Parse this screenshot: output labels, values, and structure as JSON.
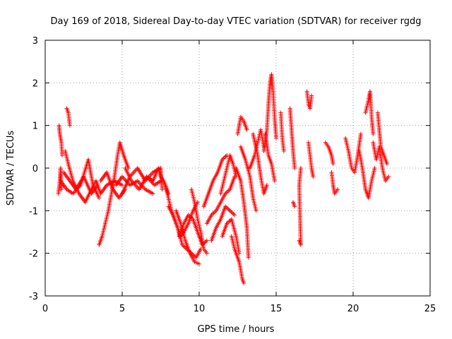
{
  "chart_data": {
    "type": "scatter",
    "title": "Day 169 of 2018, Sidereal Day-to-day VTEC variation (SDTVAR) for receiver rgdg",
    "xlabel": "GPS time / hours",
    "ylabel": "SDTVAR / TECUs",
    "xlim": [
      0,
      25
    ],
    "ylim": [
      -3,
      3
    ],
    "xticks": [
      0,
      5,
      10,
      15,
      20,
      25
    ],
    "yticks": [
      -3,
      -2,
      -1,
      0,
      1,
      2,
      3
    ],
    "grid": true,
    "marker": "+",
    "color": "#ff0000",
    "series": [
      {
        "name": "SDTVAR",
        "tracks": [
          [
            [
              0.85,
              -0.6
            ],
            [
              0.95,
              -0.3
            ],
            [
              1.0,
              0.0
            ],
            [
              1.05,
              -0.5
            ]
          ],
          [
            [
              0.9,
              1.0
            ],
            [
              0.95,
              0.8
            ],
            [
              1.05,
              0.6
            ],
            [
              1.1,
              0.3
            ]
          ],
          [
            [
              1.4,
              1.4
            ],
            [
              1.5,
              1.3
            ],
            [
              1.6,
              1.0
            ]
          ],
          [
            [
              1.3,
              0.4
            ],
            [
              1.5,
              0.1
            ],
            [
              1.8,
              -0.3
            ],
            [
              2.2,
              -0.6
            ],
            [
              2.6,
              -0.8
            ],
            [
              3.0,
              -0.5
            ],
            [
              3.3,
              -0.3
            ],
            [
              3.6,
              -0.6
            ],
            [
              4.0,
              -0.4
            ],
            [
              4.5,
              -0.3
            ],
            [
              5.0,
              -0.4
            ]
          ],
          [
            [
              1.0,
              -0.3
            ],
            [
              1.4,
              -0.5
            ],
            [
              1.8,
              -0.6
            ],
            [
              2.3,
              -0.4
            ],
            [
              2.8,
              0.2
            ],
            [
              3.1,
              -0.4
            ],
            [
              3.5,
              -0.7
            ]
          ],
          [
            [
              1.2,
              -0.1
            ],
            [
              1.6,
              -0.3
            ],
            [
              2.0,
              -0.5
            ],
            [
              2.5,
              -0.2
            ],
            [
              3.0,
              -0.6
            ],
            [
              3.4,
              -0.4
            ]
          ],
          [
            [
              3.5,
              -1.8
            ],
            [
              3.7,
              -1.6
            ],
            [
              3.9,
              -1.3
            ],
            [
              4.1,
              -1.0
            ],
            [
              4.3,
              -0.6
            ],
            [
              4.5,
              -0.2
            ],
            [
              4.7,
              0.3
            ],
            [
              4.85,
              0.6
            ],
            [
              5.1,
              0.3
            ],
            [
              5.4,
              0.0
            ]
          ],
          [
            [
              3.6,
              -0.3
            ],
            [
              4.0,
              -0.1
            ],
            [
              4.4,
              -0.5
            ],
            [
              4.8,
              -0.7
            ],
            [
              5.2,
              -0.5
            ]
          ],
          [
            [
              4.6,
              -0.4
            ],
            [
              5.0,
              -0.2
            ],
            [
              5.5,
              -0.4
            ],
            [
              6.0,
              -0.3
            ],
            [
              6.5,
              -0.5
            ],
            [
              7.0,
              -0.6
            ]
          ],
          [
            [
              5.0,
              -0.6
            ],
            [
              5.5,
              -0.2
            ],
            [
              6.0,
              0.0
            ],
            [
              6.5,
              -0.3
            ],
            [
              7.0,
              -0.1
            ],
            [
              7.5,
              0.0
            ],
            [
              7.6,
              -0.5
            ]
          ],
          [
            [
              5.2,
              0.0
            ],
            [
              5.6,
              -0.3
            ],
            [
              6.1,
              -0.5
            ],
            [
              6.6,
              -0.2
            ],
            [
              7.1,
              -0.4
            ],
            [
              7.5,
              -0.3
            ]
          ],
          [
            [
              6.6,
              -0.2
            ],
            [
              7.0,
              -0.3
            ],
            [
              7.35,
              0.0
            ],
            [
              7.5,
              -0.2
            ],
            [
              7.7,
              -0.3
            ],
            [
              7.9,
              -0.5
            ],
            [
              8.0,
              -0.6
            ]
          ],
          [
            [
              7.8,
              -0.4
            ],
            [
              8.0,
              -0.7
            ],
            [
              8.2,
              -1.0
            ],
            [
              8.5,
              -1.3
            ],
            [
              8.8,
              -1.6
            ],
            [
              9.0,
              -1.5
            ],
            [
              9.3,
              -1.3
            ],
            [
              9.6,
              -1.0
            ],
            [
              9.9,
              -0.8
            ]
          ],
          [
            [
              8.0,
              -0.9
            ],
            [
              8.3,
              -1.1
            ],
            [
              8.6,
              -1.4
            ],
            [
              8.9,
              -1.8
            ],
            [
              9.2,
              -1.9
            ],
            [
              9.5,
              -2.0
            ],
            [
              9.8,
              -2.1
            ],
            [
              10.1,
              -1.9
            ]
          ],
          [
            [
              8.5,
              -1.0
            ],
            [
              8.8,
              -1.3
            ],
            [
              9.1,
              -1.7
            ],
            [
              9.4,
              -2.0
            ],
            [
              9.7,
              -2.2
            ],
            [
              10.0,
              -2.25
            ]
          ],
          [
            [
              8.7,
              -1.6
            ],
            [
              9.0,
              -1.3
            ],
            [
              9.3,
              -1.1
            ],
            [
              9.6,
              -1.2
            ],
            [
              9.9,
              -1.5
            ],
            [
              10.2,
              -1.8
            ],
            [
              10.5,
              -1.7
            ]
          ],
          [
            [
              9.5,
              -0.5
            ],
            [
              9.7,
              -0.8
            ],
            [
              9.9,
              -1.2
            ],
            [
              10.1,
              -1.5
            ],
            [
              10.3,
              -1.9
            ],
            [
              10.5,
              -2.0
            ]
          ],
          [
            [
              10.3,
              -0.9
            ],
            [
              10.6,
              -0.6
            ],
            [
              10.9,
              -0.3
            ],
            [
              11.2,
              -0.1
            ],
            [
              11.5,
              0.2
            ],
            [
              11.8,
              0.3
            ]
          ],
          [
            [
              10.5,
              -1.3
            ],
            [
              10.8,
              -1.1
            ],
            [
              11.1,
              -1.0
            ],
            [
              11.4,
              -0.8
            ],
            [
              11.7,
              -0.6
            ],
            [
              12.0,
              -0.5
            ],
            [
              12.3,
              -0.2
            ]
          ],
          [
            [
              10.8,
              -1.7
            ],
            [
              11.1,
              -1.4
            ],
            [
              11.4,
              -1.2
            ],
            [
              11.7,
              -0.9
            ],
            [
              12.0,
              -1.0
            ],
            [
              12.3,
              -1.1
            ]
          ],
          [
            [
              11.4,
              -0.6
            ],
            [
              11.6,
              -0.3
            ],
            [
              11.8,
              0.0
            ],
            [
              12.0,
              0.3
            ],
            [
              12.2,
              0.1
            ],
            [
              12.4,
              -0.2
            ]
          ],
          [
            [
              11.5,
              -1.6
            ],
            [
              11.8,
              -1.3
            ],
            [
              12.1,
              -1.2
            ],
            [
              12.4,
              -1.6
            ],
            [
              12.6,
              -2.0
            ]
          ],
          [
            [
              12.1,
              -1.6
            ],
            [
              12.3,
              -1.9
            ],
            [
              12.6,
              -2.2
            ],
            [
              12.8,
              -2.6
            ],
            [
              12.9,
              -2.7
            ]
          ],
          [
            [
              12.4,
              0.0
            ],
            [
              12.7,
              -0.3
            ],
            [
              12.9,
              -0.8
            ],
            [
              13.1,
              -1.4
            ],
            [
              13.2,
              -2.1
            ]
          ],
          [
            [
              12.5,
              0.8
            ],
            [
              12.7,
              1.2
            ],
            [
              12.9,
              1.1
            ],
            [
              13.1,
              0.9
            ]
          ],
          [
            [
              12.7,
              0.5
            ],
            [
              13.0,
              0.2
            ],
            [
              13.3,
              -0.2
            ],
            [
              13.5,
              -0.7
            ],
            [
              13.7,
              -1.0
            ]
          ],
          [
            [
              13.3,
              0.0
            ],
            [
              13.6,
              0.3
            ],
            [
              13.8,
              0.6
            ],
            [
              14.0,
              0.9
            ],
            [
              14.2,
              0.5
            ]
          ],
          [
            [
              13.5,
              0.8
            ],
            [
              13.8,
              0.3
            ],
            [
              14.0,
              -0.2
            ],
            [
              14.2,
              -0.6
            ],
            [
              14.4,
              -0.4
            ]
          ],
          [
            [
              14.2,
              0.4
            ],
            [
              14.4,
              0.9
            ],
            [
              14.5,
              1.5
            ],
            [
              14.6,
              2.0
            ],
            [
              14.7,
              2.2
            ],
            [
              14.8,
              1.8
            ],
            [
              14.9,
              1.2
            ],
            [
              15.0,
              0.7
            ]
          ],
          [
            [
              14.3,
              0.8
            ],
            [
              14.5,
              0.3
            ],
            [
              14.7,
              0.1
            ],
            [
              14.9,
              -0.3
            ]
          ],
          [
            [
              15.3,
              1.3
            ],
            [
              15.4,
              0.7
            ],
            [
              15.5,
              0.4
            ]
          ],
          [
            [
              15.9,
              1.4
            ],
            [
              16.0,
              0.9
            ],
            [
              16.1,
              0.4
            ],
            [
              16.2,
              0.0
            ]
          ],
          [
            [
              16.1,
              -0.8
            ],
            [
              16.2,
              -0.9
            ]
          ],
          [
            [
              16.5,
              -1.7
            ],
            [
              16.6,
              -1.8
            ],
            [
              16.5,
              -0.4
            ],
            [
              16.6,
              0.0
            ]
          ],
          [
            [
              17.0,
              1.8
            ],
            [
              17.1,
              1.5
            ],
            [
              17.2,
              1.4
            ],
            [
              17.3,
              1.7
            ]
          ],
          [
            [
              17.1,
              0.6
            ],
            [
              17.2,
              0.3
            ],
            [
              17.3,
              0.0
            ],
            [
              17.4,
              -0.2
            ]
          ],
          [
            [
              18.2,
              0.6
            ],
            [
              18.4,
              0.5
            ],
            [
              18.6,
              0.3
            ],
            [
              18.7,
              0.1
            ]
          ],
          [
            [
              18.6,
              -0.1
            ],
            [
              18.7,
              -0.4
            ],
            [
              18.8,
              -0.6
            ],
            [
              19.0,
              -0.5
            ]
          ],
          [
            [
              19.5,
              0.7
            ],
            [
              19.7,
              0.4
            ],
            [
              19.9,
              0.0
            ],
            [
              20.1,
              -0.1
            ],
            [
              20.3,
              0.3
            ],
            [
              20.5,
              0.8
            ]
          ],
          [
            [
              20.4,
              0.4
            ],
            [
              20.6,
              0.0
            ],
            [
              20.8,
              -0.5
            ],
            [
              21.0,
              -0.7
            ],
            [
              21.2,
              -0.3
            ],
            [
              21.4,
              0.0
            ]
          ],
          [
            [
              20.8,
              1.3
            ],
            [
              21.0,
              1.6
            ],
            [
              21.1,
              1.8
            ],
            [
              21.2,
              1.2
            ],
            [
              21.3,
              0.8
            ]
          ],
          [
            [
              21.3,
              0.6
            ],
            [
              21.5,
              0.2
            ],
            [
              21.7,
              0.5
            ],
            [
              21.9,
              0.0
            ],
            [
              22.1,
              -0.3
            ],
            [
              22.3,
              -0.2
            ]
          ],
          [
            [
              21.6,
              1.3
            ],
            [
              21.7,
              0.9
            ],
            [
              21.8,
              0.5
            ],
            [
              22.0,
              0.3
            ],
            [
              22.2,
              0.1
            ]
          ]
        ]
      }
    ]
  }
}
